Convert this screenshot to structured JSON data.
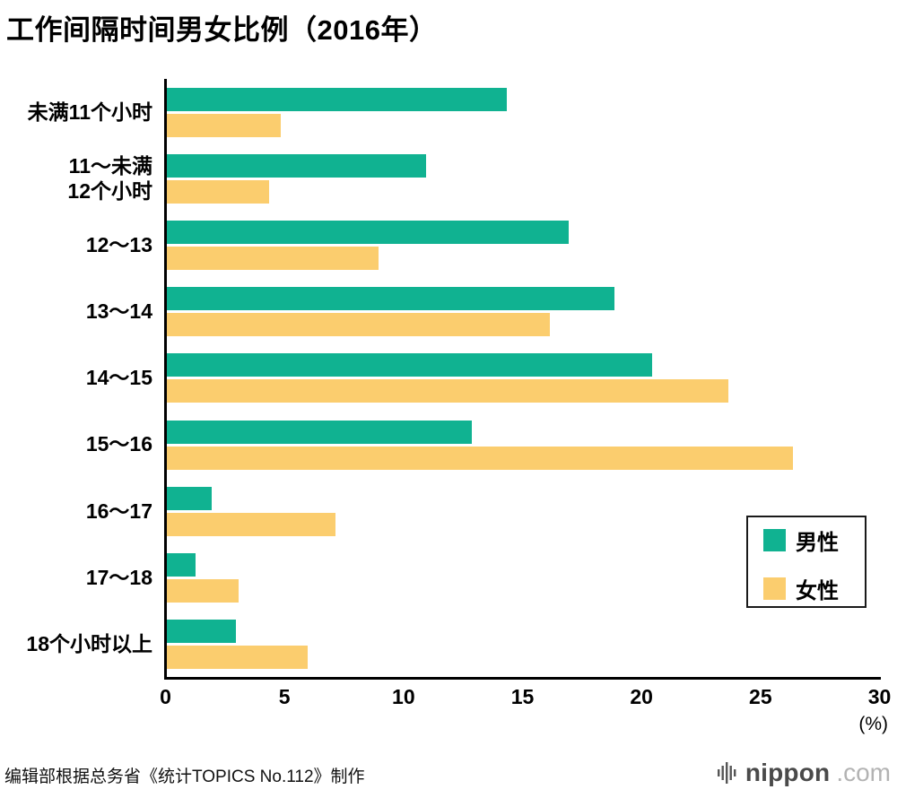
{
  "title": "工作间隔时间男女比例（2016年）",
  "chart_data": {
    "type": "bar",
    "orientation": "horizontal",
    "title": "工作间隔时间男女比例（2016年）",
    "categories": [
      "未满11个小时",
      "11～未满\n12个小时",
      "12～13",
      "13～14",
      "14～15",
      "15～16",
      "16～17",
      "17～18",
      "18个小时以上"
    ],
    "series": [
      {
        "name": "男性",
        "color": "#10b291",
        "values": [
          14.3,
          10.9,
          16.9,
          18.8,
          20.4,
          12.8,
          1.9,
          1.2,
          2.9
        ]
      },
      {
        "name": "女性",
        "color": "#fbcd6e",
        "values": [
          4.8,
          4.3,
          8.9,
          16.1,
          23.6,
          26.3,
          7.1,
          3.0,
          5.9
        ]
      }
    ],
    "xlim": [
      0,
      30
    ],
    "xticks": [
      0,
      5,
      10,
      15,
      20,
      25,
      30
    ],
    "xunit": "(%)",
    "grid": "off",
    "legend_position": "lower-right",
    "axis_color": "#000000"
  },
  "footer": {
    "source": "编辑部根据总务省《统计TOPICS No.112》制作",
    "logo_text": "nippon",
    "logo_suffix": ".com"
  }
}
